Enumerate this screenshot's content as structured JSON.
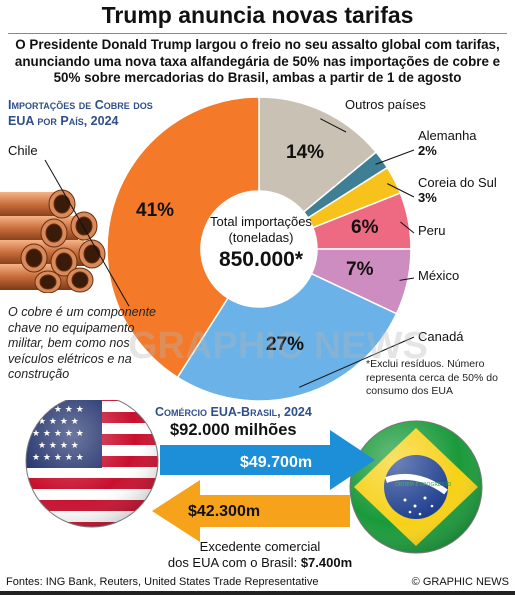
{
  "title": "Trump anuncia novas tarifas",
  "subtitle": "O Presidente Donald Trump largou o freio no seu assalto global com tarifas, anunciando uma nova taxa alfandegária de 50% nas importações de cobre e 50% sobre mercadorias do Brasil, ambas a partir de 1 de agosto",
  "copper": {
    "heading_line1": "Importações de Cobre dos",
    "heading_line2": "EUA  por País, 2024",
    "center_label_line1": "Total importações",
    "center_label_line2": "(toneladas)",
    "center_value": "850.000*",
    "note": "O cobre é um componente chave no equipamento militar, bem como nos veículos elétricos e na construção",
    "footnote": "*Exclui resíduos. Número representa cerca de 50% do consumo dos EUA"
  },
  "chart_data": {
    "type": "pie",
    "title": "Importações de Cobre dos EUA por País, 2024",
    "unit": "%",
    "slices": [
      {
        "label": "Outros países",
        "value": 14,
        "display": "14%",
        "color": "#c9c2b4"
      },
      {
        "label": "Alemanha",
        "value": 2,
        "display": "2%",
        "color": "#3f7f96"
      },
      {
        "label": "Coreia do Sul",
        "value": 3,
        "display": "3%",
        "color": "#f6c21b"
      },
      {
        "label": "Peru",
        "value": 6,
        "display": "6%",
        "color": "#ee6a82"
      },
      {
        "label": "México",
        "value": 7,
        "display": "7%",
        "color": "#cd8dc0"
      },
      {
        "label": "Canadá",
        "value": 27,
        "display": "27%",
        "color": "#6ab2e8"
      },
      {
        "label": "Chile",
        "value": 41,
        "display": "41%",
        "color": "#f47a2a"
      }
    ]
  },
  "trade": {
    "heading": "Comércio EUA-Brasil, 2024",
    "total": "$92.000 milhões",
    "exports": "$49.700m",
    "imports": "$42.300m",
    "surplus_line1": "Excedente comercial",
    "surplus_prefix": "dos EUA com o Brasil: ",
    "surplus_value": "$7.400m",
    "brazil_motto": "ORDEM E PROGRESSO"
  },
  "watermark": "GRAPHIC NEWS",
  "sources": "Fontes: ING Bank, Reuters, United States Trade Representative",
  "copyright": "© GRAPHIC NEWS",
  "colors": {
    "arrow_blue": "#1d8ed8",
    "arrow_orange": "#f7a21b",
    "heading_blue": "#2f4f8a"
  }
}
